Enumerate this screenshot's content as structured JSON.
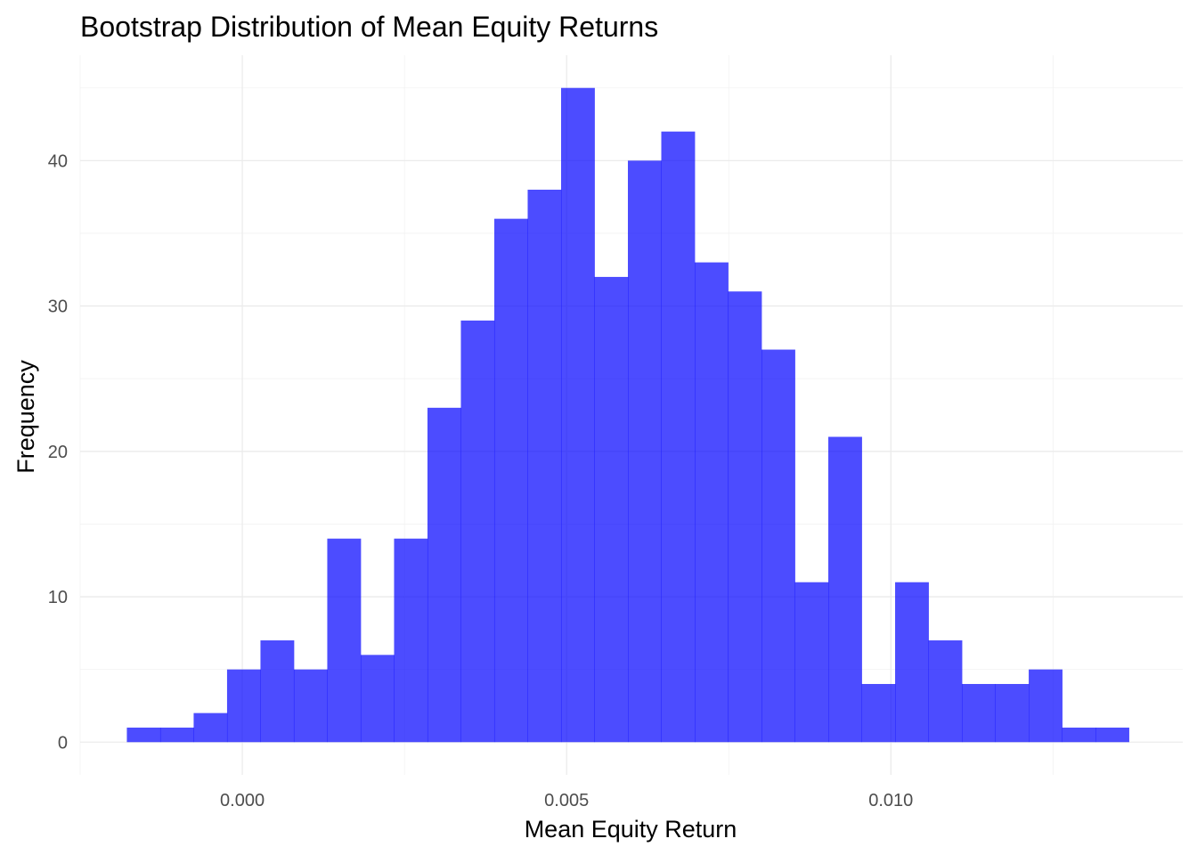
{
  "chart_data": {
    "type": "bar",
    "title": "Bootstrap Distribution of Mean Equity Returns",
    "xlabel": "Mean Equity Return",
    "ylabel": "Frequency",
    "bin_width": 0.000515,
    "bins_start": -0.00178,
    "counts": [
      1,
      1,
      2,
      5,
      7,
      5,
      14,
      6,
      14,
      23,
      29,
      36,
      38,
      45,
      32,
      40,
      42,
      33,
      31,
      27,
      11,
      21,
      4,
      11,
      7,
      4,
      4,
      5,
      1,
      1
    ],
    "xlim": [
      -0.0025,
      0.0145
    ],
    "ylim": [
      -2.25,
      47.25
    ],
    "x_ticks": [
      0.0,
      0.005,
      0.01
    ],
    "x_tick_labels": [
      "0.000",
      "0.005",
      "0.010"
    ],
    "y_ticks": [
      0,
      10,
      20,
      30,
      40
    ],
    "y_tick_labels": [
      "0",
      "10",
      "20",
      "30",
      "40"
    ],
    "bar_color": "#0000ff",
    "bar_opacity": 0.7,
    "grid": true,
    "legend": "none"
  }
}
